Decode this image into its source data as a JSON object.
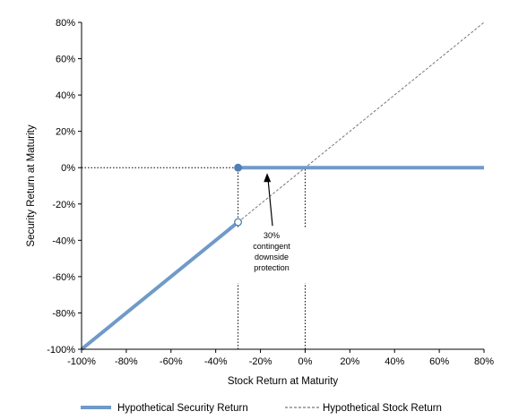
{
  "chart_data": {
    "type": "line",
    "title": "",
    "xlabel": "Stock Return at Maturity",
    "ylabel": "Security Return at Maturity",
    "xlim": [
      -100,
      80
    ],
    "ylim": [
      -100,
      80
    ],
    "x_ticks": [
      -100,
      -80,
      -60,
      -40,
      -20,
      0,
      20,
      40,
      60,
      80
    ],
    "y_ticks": [
      -100,
      -80,
      -60,
      -40,
      -20,
      0,
      20,
      40,
      60,
      80
    ],
    "x_tick_labels": [
      "-100%",
      "-80%",
      "-60%",
      "-40%",
      "-20%",
      "0%",
      "20%",
      "40%",
      "60%",
      "80%"
    ],
    "y_tick_labels": [
      "-100%",
      "-80%",
      "-60%",
      "-40%",
      "-20%",
      "0%",
      "20%",
      "40%",
      "60%",
      "80%"
    ],
    "grid": false,
    "legend_position": "bottom",
    "series": [
      {
        "name": "Hypothetical Security Return",
        "style": "solid",
        "color": "#6f9ac9",
        "segments": [
          {
            "x": [
              -100,
              -30
            ],
            "y": [
              -100,
              -30
            ]
          },
          {
            "x": [
              -30,
              80
            ],
            "y": [
              0,
              0
            ]
          }
        ],
        "markers": [
          {
            "x": -30,
            "y": 0,
            "filled": true
          },
          {
            "x": -30,
            "y": -30,
            "filled": false
          }
        ]
      },
      {
        "name": "Hypothetical Stock Return",
        "style": "dashed",
        "color": "#777777",
        "x": [
          -30,
          80
        ],
        "y": [
          -30,
          80
        ]
      }
    ],
    "reference_lines": [
      {
        "type": "horizontal",
        "y": 0,
        "x_from": -100,
        "x_to": -30
      },
      {
        "type": "vertical",
        "x": -30,
        "y_from": -100,
        "y_to": 0
      },
      {
        "type": "vertical",
        "x": 0,
        "y_from": -100,
        "y_to": 0
      }
    ],
    "annotation": {
      "lines": [
        "30%",
        "contingent",
        "downside",
        "protection"
      ],
      "arrow_tip": {
        "x": -17,
        "y": 0
      },
      "anchor": {
        "x": -15,
        "y": -35
      }
    }
  }
}
